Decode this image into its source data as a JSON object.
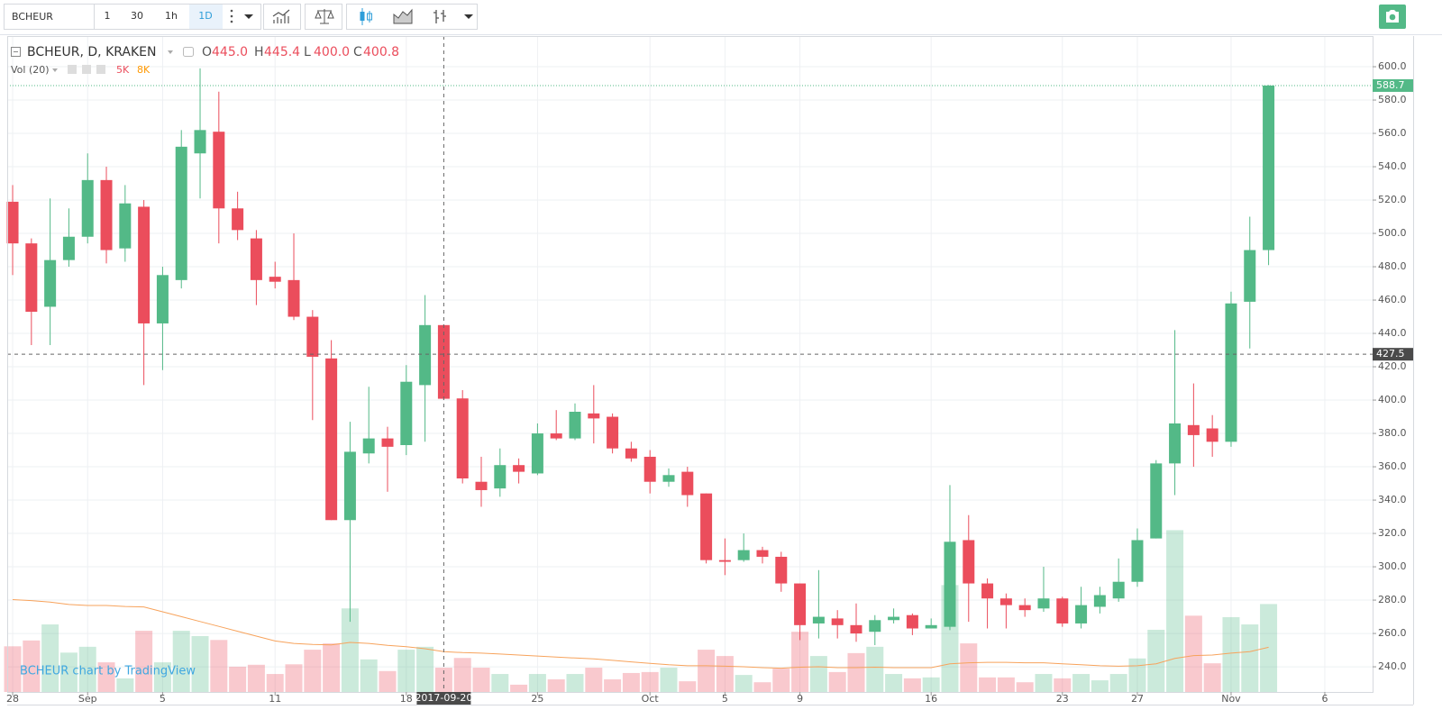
{
  "toolbar": {
    "symbol": "BCHEUR",
    "intervals": [
      "1",
      "30",
      "1h",
      "1D"
    ]
  },
  "chart_data": {
    "type": "candlestick",
    "title": "BCHEUR, D, KRAKEN",
    "ohlc_legend": [
      {
        "key": "O",
        "value": 445,
        "label": "445.0"
      },
      {
        "key": "H",
        "value": 445.4,
        "label": "445.4"
      },
      {
        "key": "L",
        "value": 400,
        "label": "400.0"
      },
      {
        "key": "C",
        "value": 400.8,
        "label": "400.8"
      }
    ],
    "x": [
      0,
      1,
      2,
      3,
      4,
      5,
      6,
      7,
      8,
      9,
      10,
      11,
      12,
      13,
      14,
      15,
      16,
      17,
      18,
      19,
      20,
      21,
      22,
      23,
      24,
      25,
      26,
      27,
      28,
      29,
      30,
      31,
      32,
      33,
      34,
      35,
      36,
      37,
      38,
      39,
      40,
      41,
      42,
      43,
      44,
      45,
      46,
      47,
      48,
      49,
      50,
      51,
      52,
      53,
      54,
      55,
      56,
      57,
      58,
      59,
      60,
      61,
      62,
      63,
      64,
      65,
      66,
      67
    ],
    "xlim": [
      -0.29,
      72.55
    ],
    "xticks": [
      {
        "value": 0,
        "label": "28"
      },
      {
        "value": 4,
        "label": "Sep"
      },
      {
        "value": 8,
        "label": "5"
      },
      {
        "value": 14,
        "label": "11"
      },
      {
        "value": 21,
        "label": "18"
      },
      {
        "value": 28,
        "label": "25"
      },
      {
        "value": 34,
        "label": "Oct"
      },
      {
        "value": 38,
        "label": "5"
      },
      {
        "value": 42,
        "label": "9"
      },
      {
        "value": 49,
        "label": "16"
      },
      {
        "value": 56,
        "label": "23"
      },
      {
        "value": 60,
        "label": "27"
      },
      {
        "value": 65,
        "label": "Nov"
      },
      {
        "value": 70,
        "label": "6"
      }
    ],
    "open": [
      519,
      494,
      456,
      484,
      498,
      532,
      491,
      516,
      446,
      472,
      548,
      561,
      515,
      497,
      474,
      472,
      450,
      425,
      328,
      368,
      377,
      373,
      409,
      445,
      401,
      351,
      347,
      361,
      356,
      380,
      377,
      392,
      390,
      371,
      366,
      351,
      357,
      344,
      304,
      304,
      310,
      306,
      290,
      266,
      269,
      265,
      261,
      268,
      271,
      263,
      264,
      316,
      290,
      281,
      277,
      275,
      281,
      266,
      276,
      281,
      291,
      317,
      362,
      385,
      383,
      375,
      459,
      490
    ],
    "high": [
      529,
      497,
      521,
      515,
      548,
      540,
      529,
      520,
      480,
      562,
      599,
      585,
      525,
      502,
      483,
      500,
      454,
      436,
      387,
      408,
      384,
      421,
      463,
      445.4,
      406,
      366,
      371,
      365,
      386,
      394,
      398,
      409,
      392,
      375,
      370,
      359,
      360,
      344,
      317,
      320,
      312,
      309,
      290,
      298,
      274,
      278,
      271,
      275,
      272,
      269,
      349,
      331,
      293,
      284,
      281,
      300,
      282,
      288,
      288,
      305,
      323,
      364,
      442,
      410,
      391,
      465,
      510,
      589
    ],
    "low": [
      475,
      433,
      433,
      480,
      494,
      482,
      483,
      409,
      418,
      467,
      521,
      494,
      496,
      457,
      467,
      448,
      388,
      328,
      267,
      362,
      345,
      367,
      375,
      400,
      350,
      336,
      342,
      350,
      355,
      376,
      376,
      374,
      368,
      363,
      344,
      348,
      336,
      302,
      295,
      303,
      302,
      285,
      256,
      257,
      257,
      255,
      253,
      266,
      259,
      263,
      262,
      267,
      263,
      263,
      270,
      273,
      264,
      263,
      272,
      279,
      288,
      317,
      343,
      360,
      366,
      372,
      431,
      481
    ],
    "close": [
      494,
      453,
      484,
      498,
      532,
      490,
      518,
      446,
      475,
      552,
      562,
      515,
      502,
      472,
      471,
      450,
      426,
      328,
      369,
      377,
      372,
      411,
      445,
      400.8,
      353,
      346,
      361,
      357,
      380,
      377,
      393,
      389,
      371,
      365,
      351,
      355,
      343,
      304,
      303,
      310,
      306,
      290,
      265,
      270,
      265,
      260,
      268,
      270,
      263,
      265,
      315,
      290,
      281,
      277,
      274,
      281,
      266,
      277,
      283,
      291,
      316,
      362,
      386,
      379,
      375,
      458,
      490,
      588.7
    ],
    "up_color": "#53b987",
    "down_color": "#eb4d5c",
    "ylim": [
      224.9,
      618.4
    ],
    "yticks": [
      {
        "value": 600,
        "label": "600.0"
      },
      {
        "value": 580,
        "label": "580.0"
      },
      {
        "value": 560,
        "label": "560.0"
      },
      {
        "value": 540,
        "label": "540.0"
      },
      {
        "value": 520,
        "label": "520.0"
      },
      {
        "value": 500,
        "label": "500.0"
      },
      {
        "value": 480,
        "label": "480.0"
      },
      {
        "value": 460,
        "label": "460.0"
      },
      {
        "value": 440,
        "label": "440.0"
      },
      {
        "value": 420,
        "label": "420.0"
      },
      {
        "value": 400,
        "label": "400.0"
      },
      {
        "value": 380,
        "label": "380.0"
      },
      {
        "value": 360,
        "label": "360.0"
      },
      {
        "value": 340,
        "label": "340.0"
      },
      {
        "value": 320,
        "label": "320.0"
      },
      {
        "value": 300,
        "label": "300.0"
      },
      {
        "value": 280,
        "label": "280.0"
      },
      {
        "value": 260,
        "label": "260.0"
      },
      {
        "value": 240,
        "label": "240.0"
      }
    ],
    "grid": true,
    "last_price": 588.7,
    "crosshair": {
      "price": 427.5,
      "date": "2017-09-20",
      "x": 23
    },
    "volume": {
      "name": "Vol (20)",
      "values": [
        9400,
        10600,
        13900,
        8100,
        9300,
        6100,
        2800,
        12600,
        6100,
        12600,
        11500,
        10700,
        5200,
        5600,
        3700,
        5700,
        8700,
        10000,
        17200,
        6700,
        4300,
        8700,
        9300,
        5000,
        7000,
        5000,
        3700,
        1500,
        3700,
        2600,
        3700,
        5000,
        2600,
        3900,
        4100,
        5000,
        2200,
        8700,
        7400,
        3500,
        2000,
        4800,
        12400,
        7400,
        4100,
        8000,
        9300,
        3700,
        2800,
        3000,
        22000,
        10000,
        3000,
        3000,
        2000,
        3700,
        2800,
        3700,
        2400,
        3700,
        6900,
        12800,
        33300,
        15700,
        5900,
        15400,
        13900,
        18100
      ],
      "ma": [
        19000,
        18800,
        18500,
        18000,
        17800,
        17800,
        17600,
        17500,
        16500,
        15500,
        14500,
        13500,
        12500,
        11500,
        10500,
        10000,
        9800,
        9700,
        10200,
        10000,
        9600,
        9300,
        8900,
        8300,
        8100,
        8000,
        7800,
        7600,
        7400,
        7200,
        7000,
        6800,
        6500,
        6200,
        5900,
        5600,
        5400,
        5400,
        5300,
        5200,
        5000,
        4900,
        5100,
        5200,
        5000,
        5000,
        5100,
        5000,
        5000,
        5000,
        5800,
        6000,
        6100,
        6100,
        6000,
        6000,
        5800,
        5600,
        5400,
        5300,
        5400,
        5800,
        6900,
        7500,
        7600,
        8000,
        8300,
        9200
      ],
      "ma_color": "#f7a35c",
      "ylim": [
        0,
        135000
      ],
      "legend_values": [
        {
          "value": 5000,
          "label": "5K",
          "color": "#eb4d5c"
        },
        {
          "value": 8300,
          "label": "8K",
          "color": "#ff9800"
        }
      ]
    },
    "watermark": "BCHEUR chart by TradingView"
  }
}
